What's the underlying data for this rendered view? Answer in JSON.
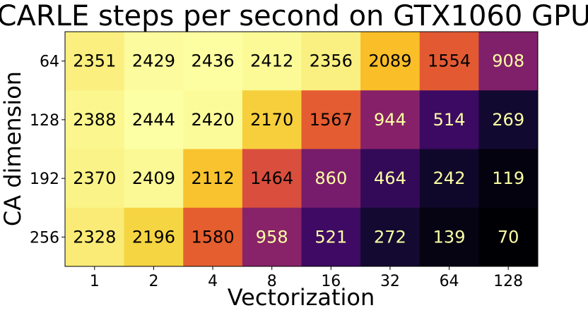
{
  "chart_data": {
    "type": "heatmap",
    "title": "CARLE steps per second on GTX1060 GPU",
    "xlabel": "Vectorization",
    "ylabel": "CA dimension",
    "x_categories": [
      "1",
      "2",
      "4",
      "8",
      "16",
      "32",
      "64",
      "128"
    ],
    "y_categories": [
      "64",
      "128",
      "192",
      "256"
    ],
    "values": [
      [
        2351,
        2429,
        2436,
        2412,
        2356,
        2089,
        1554,
        908
      ],
      [
        2388,
        2444,
        2420,
        2170,
        1567,
        944,
        514,
        269
      ],
      [
        2370,
        2409,
        2112,
        1464,
        860,
        464,
        242,
        119
      ],
      [
        2328,
        2196,
        1580,
        958,
        521,
        272,
        139,
        70
      ]
    ],
    "colormap": "inferno",
    "value_range": [
      70,
      2444
    ],
    "grid": false
  }
}
